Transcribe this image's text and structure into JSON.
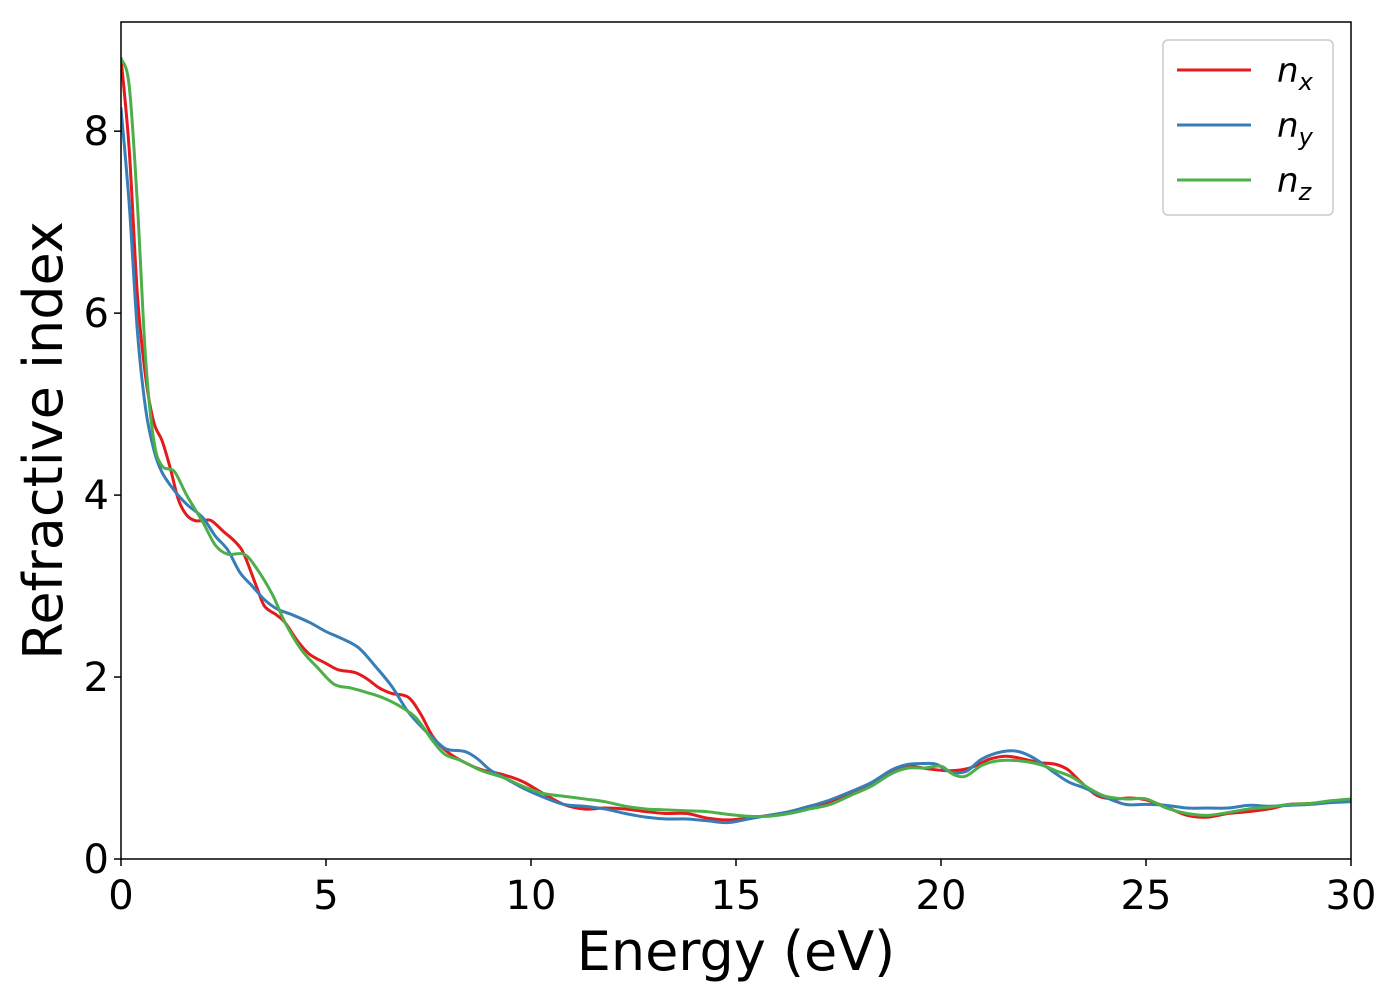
{
  "chart_data": {
    "type": "line",
    "title": "",
    "xlabel": "Energy (eV)",
    "ylabel": "Refractive index",
    "xlim": [
      0,
      30
    ],
    "ylim": [
      0,
      9.2
    ],
    "xticks": [
      0,
      5,
      10,
      15,
      20,
      25,
      30
    ],
    "xtick_labels": [
      "0",
      "5",
      "10",
      "15",
      "20",
      "25",
      "30"
    ],
    "yticks": [
      0,
      2,
      4,
      6,
      8
    ],
    "ytick_labels": [
      "0",
      "2",
      "4",
      "6",
      "8"
    ],
    "grid": false,
    "legend_position": "top-right",
    "series": [
      {
        "name": "n_x",
        "name_base": "n",
        "name_sub": "x",
        "color": "#e41a1c",
        "points": [
          [
            0,
            8.8
          ],
          [
            0.2,
            7.8
          ],
          [
            0.4,
            6.2
          ],
          [
            0.6,
            5.3
          ],
          [
            0.8,
            4.8
          ],
          [
            1.0,
            4.6
          ],
          [
            1.2,
            4.3
          ],
          [
            1.4,
            3.95
          ],
          [
            1.6,
            3.78
          ],
          [
            1.8,
            3.72
          ],
          [
            2.0,
            3.72
          ],
          [
            2.2,
            3.72
          ],
          [
            2.5,
            3.6
          ],
          [
            2.8,
            3.48
          ],
          [
            3.0,
            3.35
          ],
          [
            3.3,
            3.0
          ],
          [
            3.5,
            2.78
          ],
          [
            3.8,
            2.68
          ],
          [
            4.0,
            2.6
          ],
          [
            4.3,
            2.4
          ],
          [
            4.6,
            2.25
          ],
          [
            5.0,
            2.15
          ],
          [
            5.3,
            2.08
          ],
          [
            5.7,
            2.05
          ],
          [
            6.0,
            1.98
          ],
          [
            6.3,
            1.88
          ],
          [
            6.6,
            1.82
          ],
          [
            7.0,
            1.78
          ],
          [
            7.3,
            1.6
          ],
          [
            7.6,
            1.35
          ],
          [
            7.9,
            1.2
          ],
          [
            8.3,
            1.08
          ],
          [
            8.8,
            0.98
          ],
          [
            9.3,
            0.93
          ],
          [
            9.8,
            0.85
          ],
          [
            10.3,
            0.72
          ],
          [
            10.8,
            0.6
          ],
          [
            11.3,
            0.55
          ],
          [
            11.8,
            0.56
          ],
          [
            12.3,
            0.55
          ],
          [
            12.8,
            0.52
          ],
          [
            13.3,
            0.5
          ],
          [
            13.8,
            0.5
          ],
          [
            14.3,
            0.45
          ],
          [
            14.8,
            0.43
          ],
          [
            15.3,
            0.45
          ],
          [
            15.8,
            0.48
          ],
          [
            16.3,
            0.52
          ],
          [
            16.8,
            0.58
          ],
          [
            17.3,
            0.63
          ],
          [
            17.8,
            0.72
          ],
          [
            18.3,
            0.82
          ],
          [
            18.8,
            0.97
          ],
          [
            19.2,
            1.02
          ],
          [
            19.7,
            0.99
          ],
          [
            20.2,
            0.97
          ],
          [
            20.7,
            1.0
          ],
          [
            21.2,
            1.1
          ],
          [
            21.6,
            1.13
          ],
          [
            22.0,
            1.1
          ],
          [
            22.4,
            1.06
          ],
          [
            22.8,
            1.04
          ],
          [
            23.1,
            0.98
          ],
          [
            23.4,
            0.85
          ],
          [
            23.8,
            0.7
          ],
          [
            24.2,
            0.66
          ],
          [
            24.6,
            0.67
          ],
          [
            25.0,
            0.65
          ],
          [
            25.5,
            0.57
          ],
          [
            26.0,
            0.48
          ],
          [
            26.5,
            0.46
          ],
          [
            27.0,
            0.5
          ],
          [
            27.5,
            0.52
          ],
          [
            28.0,
            0.55
          ],
          [
            28.5,
            0.6
          ],
          [
            29.0,
            0.61
          ],
          [
            29.5,
            0.63
          ],
          [
            30,
            0.64
          ]
        ]
      },
      {
        "name": "n_y",
        "name_base": "n",
        "name_sub": "y",
        "color": "#377eb8",
        "points": [
          [
            0,
            8.25
          ],
          [
            0.2,
            7.2
          ],
          [
            0.4,
            5.8
          ],
          [
            0.6,
            4.95
          ],
          [
            0.8,
            4.5
          ],
          [
            1.0,
            4.25
          ],
          [
            1.3,
            4.05
          ],
          [
            1.6,
            3.9
          ],
          [
            2.0,
            3.75
          ],
          [
            2.3,
            3.55
          ],
          [
            2.6,
            3.4
          ],
          [
            2.9,
            3.15
          ],
          [
            3.2,
            3.0
          ],
          [
            3.5,
            2.85
          ],
          [
            3.8,
            2.75
          ],
          [
            4.2,
            2.68
          ],
          [
            4.6,
            2.6
          ],
          [
            5.0,
            2.5
          ],
          [
            5.4,
            2.42
          ],
          [
            5.8,
            2.32
          ],
          [
            6.2,
            2.12
          ],
          [
            6.6,
            1.9
          ],
          [
            7.0,
            1.62
          ],
          [
            7.4,
            1.42
          ],
          [
            7.8,
            1.25
          ],
          [
            8.0,
            1.2
          ],
          [
            8.4,
            1.18
          ],
          [
            8.7,
            1.1
          ],
          [
            9.0,
            0.98
          ],
          [
            9.4,
            0.88
          ],
          [
            9.8,
            0.78
          ],
          [
            10.3,
            0.68
          ],
          [
            10.8,
            0.6
          ],
          [
            11.3,
            0.58
          ],
          [
            11.8,
            0.55
          ],
          [
            12.3,
            0.5
          ],
          [
            12.8,
            0.46
          ],
          [
            13.3,
            0.44
          ],
          [
            13.8,
            0.44
          ],
          [
            14.3,
            0.42
          ],
          [
            14.8,
            0.4
          ],
          [
            15.3,
            0.44
          ],
          [
            15.8,
            0.48
          ],
          [
            16.3,
            0.52
          ],
          [
            16.8,
            0.58
          ],
          [
            17.3,
            0.65
          ],
          [
            17.8,
            0.74
          ],
          [
            18.3,
            0.84
          ],
          [
            18.8,
            0.98
          ],
          [
            19.2,
            1.04
          ],
          [
            19.6,
            1.05
          ],
          [
            19.9,
            1.04
          ],
          [
            20.2,
            0.96
          ],
          [
            20.6,
            0.96
          ],
          [
            21.0,
            1.1
          ],
          [
            21.5,
            1.18
          ],
          [
            21.9,
            1.18
          ],
          [
            22.3,
            1.1
          ],
          [
            22.7,
            0.97
          ],
          [
            23.1,
            0.85
          ],
          [
            23.5,
            0.78
          ],
          [
            24.0,
            0.68
          ],
          [
            24.5,
            0.6
          ],
          [
            25.0,
            0.6
          ],
          [
            25.5,
            0.59
          ],
          [
            26.0,
            0.56
          ],
          [
            26.5,
            0.56
          ],
          [
            27.0,
            0.56
          ],
          [
            27.5,
            0.59
          ],
          [
            28.0,
            0.58
          ],
          [
            28.5,
            0.59
          ],
          [
            29.0,
            0.6
          ],
          [
            29.5,
            0.62
          ],
          [
            30,
            0.63
          ]
        ]
      },
      {
        "name": "n_z",
        "name_base": "n",
        "name_sub": "z",
        "color": "#4daf4a",
        "points": [
          [
            0,
            8.8
          ],
          [
            0.2,
            8.5
          ],
          [
            0.4,
            7.2
          ],
          [
            0.6,
            5.5
          ],
          [
            0.8,
            4.6
          ],
          [
            1.0,
            4.32
          ],
          [
            1.3,
            4.26
          ],
          [
            1.6,
            4.0
          ],
          [
            2.0,
            3.7
          ],
          [
            2.3,
            3.45
          ],
          [
            2.6,
            3.35
          ],
          [
            3.0,
            3.35
          ],
          [
            3.3,
            3.2
          ],
          [
            3.7,
            2.9
          ],
          [
            4.0,
            2.6
          ],
          [
            4.4,
            2.3
          ],
          [
            4.8,
            2.1
          ],
          [
            5.2,
            1.92
          ],
          [
            5.6,
            1.88
          ],
          [
            6.0,
            1.83
          ],
          [
            6.4,
            1.77
          ],
          [
            6.8,
            1.68
          ],
          [
            7.2,
            1.55
          ],
          [
            7.6,
            1.3
          ],
          [
            7.9,
            1.15
          ],
          [
            8.3,
            1.08
          ],
          [
            8.8,
            0.97
          ],
          [
            9.3,
            0.9
          ],
          [
            9.8,
            0.8
          ],
          [
            10.3,
            0.72
          ],
          [
            10.8,
            0.69
          ],
          [
            11.3,
            0.66
          ],
          [
            11.8,
            0.63
          ],
          [
            12.3,
            0.58
          ],
          [
            12.8,
            0.55
          ],
          [
            13.3,
            0.54
          ],
          [
            13.8,
            0.53
          ],
          [
            14.3,
            0.52
          ],
          [
            14.8,
            0.49
          ],
          [
            15.3,
            0.47
          ],
          [
            15.8,
            0.47
          ],
          [
            16.3,
            0.5
          ],
          [
            16.8,
            0.55
          ],
          [
            17.3,
            0.6
          ],
          [
            17.8,
            0.7
          ],
          [
            18.3,
            0.8
          ],
          [
            18.8,
            0.94
          ],
          [
            19.2,
            1.0
          ],
          [
            19.6,
            1.0
          ],
          [
            20.0,
            1.02
          ],
          [
            20.3,
            0.93
          ],
          [
            20.6,
            0.91
          ],
          [
            21.0,
            1.03
          ],
          [
            21.4,
            1.08
          ],
          [
            21.9,
            1.08
          ],
          [
            22.4,
            1.04
          ],
          [
            22.8,
            0.97
          ],
          [
            23.2,
            0.9
          ],
          [
            23.6,
            0.78
          ],
          [
            24.0,
            0.69
          ],
          [
            24.5,
            0.66
          ],
          [
            25.0,
            0.66
          ],
          [
            25.5,
            0.56
          ],
          [
            26.0,
            0.5
          ],
          [
            26.5,
            0.48
          ],
          [
            27.0,
            0.51
          ],
          [
            27.5,
            0.55
          ],
          [
            28.0,
            0.57
          ],
          [
            28.5,
            0.6
          ],
          [
            29.0,
            0.61
          ],
          [
            29.5,
            0.64
          ],
          [
            30,
            0.66
          ]
        ]
      }
    ]
  }
}
